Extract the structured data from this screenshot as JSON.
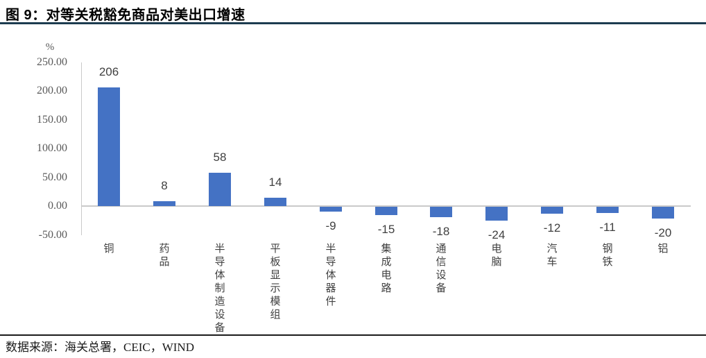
{
  "header": {
    "title": "图 9：对等关税豁免商品对美出口增速"
  },
  "footer": {
    "source": "数据来源：海关总署，CEIC，WIND"
  },
  "chart_data": {
    "type": "bar",
    "title": "对等关税豁免商品对美出口增速",
    "xlabel": "",
    "ylabel": "%",
    "categories": [
      "铜",
      "药品",
      "半导体制造设备",
      "平板显示模组",
      "半导体器件",
      "集成电路",
      "通信设备",
      "电脑",
      "汽车",
      "钢铁",
      "铝"
    ],
    "values": [
      206,
      8,
      58,
      14,
      -9,
      -15,
      -18,
      -24,
      -12,
      -11,
      -20
    ],
    "ylim": [
      -50,
      250
    ],
    "yticks": [
      250,
      200,
      150,
      100,
      50,
      0,
      -50
    ],
    "ytick_labels": [
      "250.00",
      "200.00",
      "150.00",
      "100.00",
      "50.00",
      "0.00",
      "-50.00"
    ],
    "grid": false,
    "legend": "none",
    "data_labels": "outside-end",
    "colors": {
      "bar": "#4472C4",
      "axis": "#C9C9C9",
      "title_rule": "#1D3C50",
      "tick_text": "#595959",
      "value_text": "#404040",
      "category_text": "#404040"
    }
  }
}
